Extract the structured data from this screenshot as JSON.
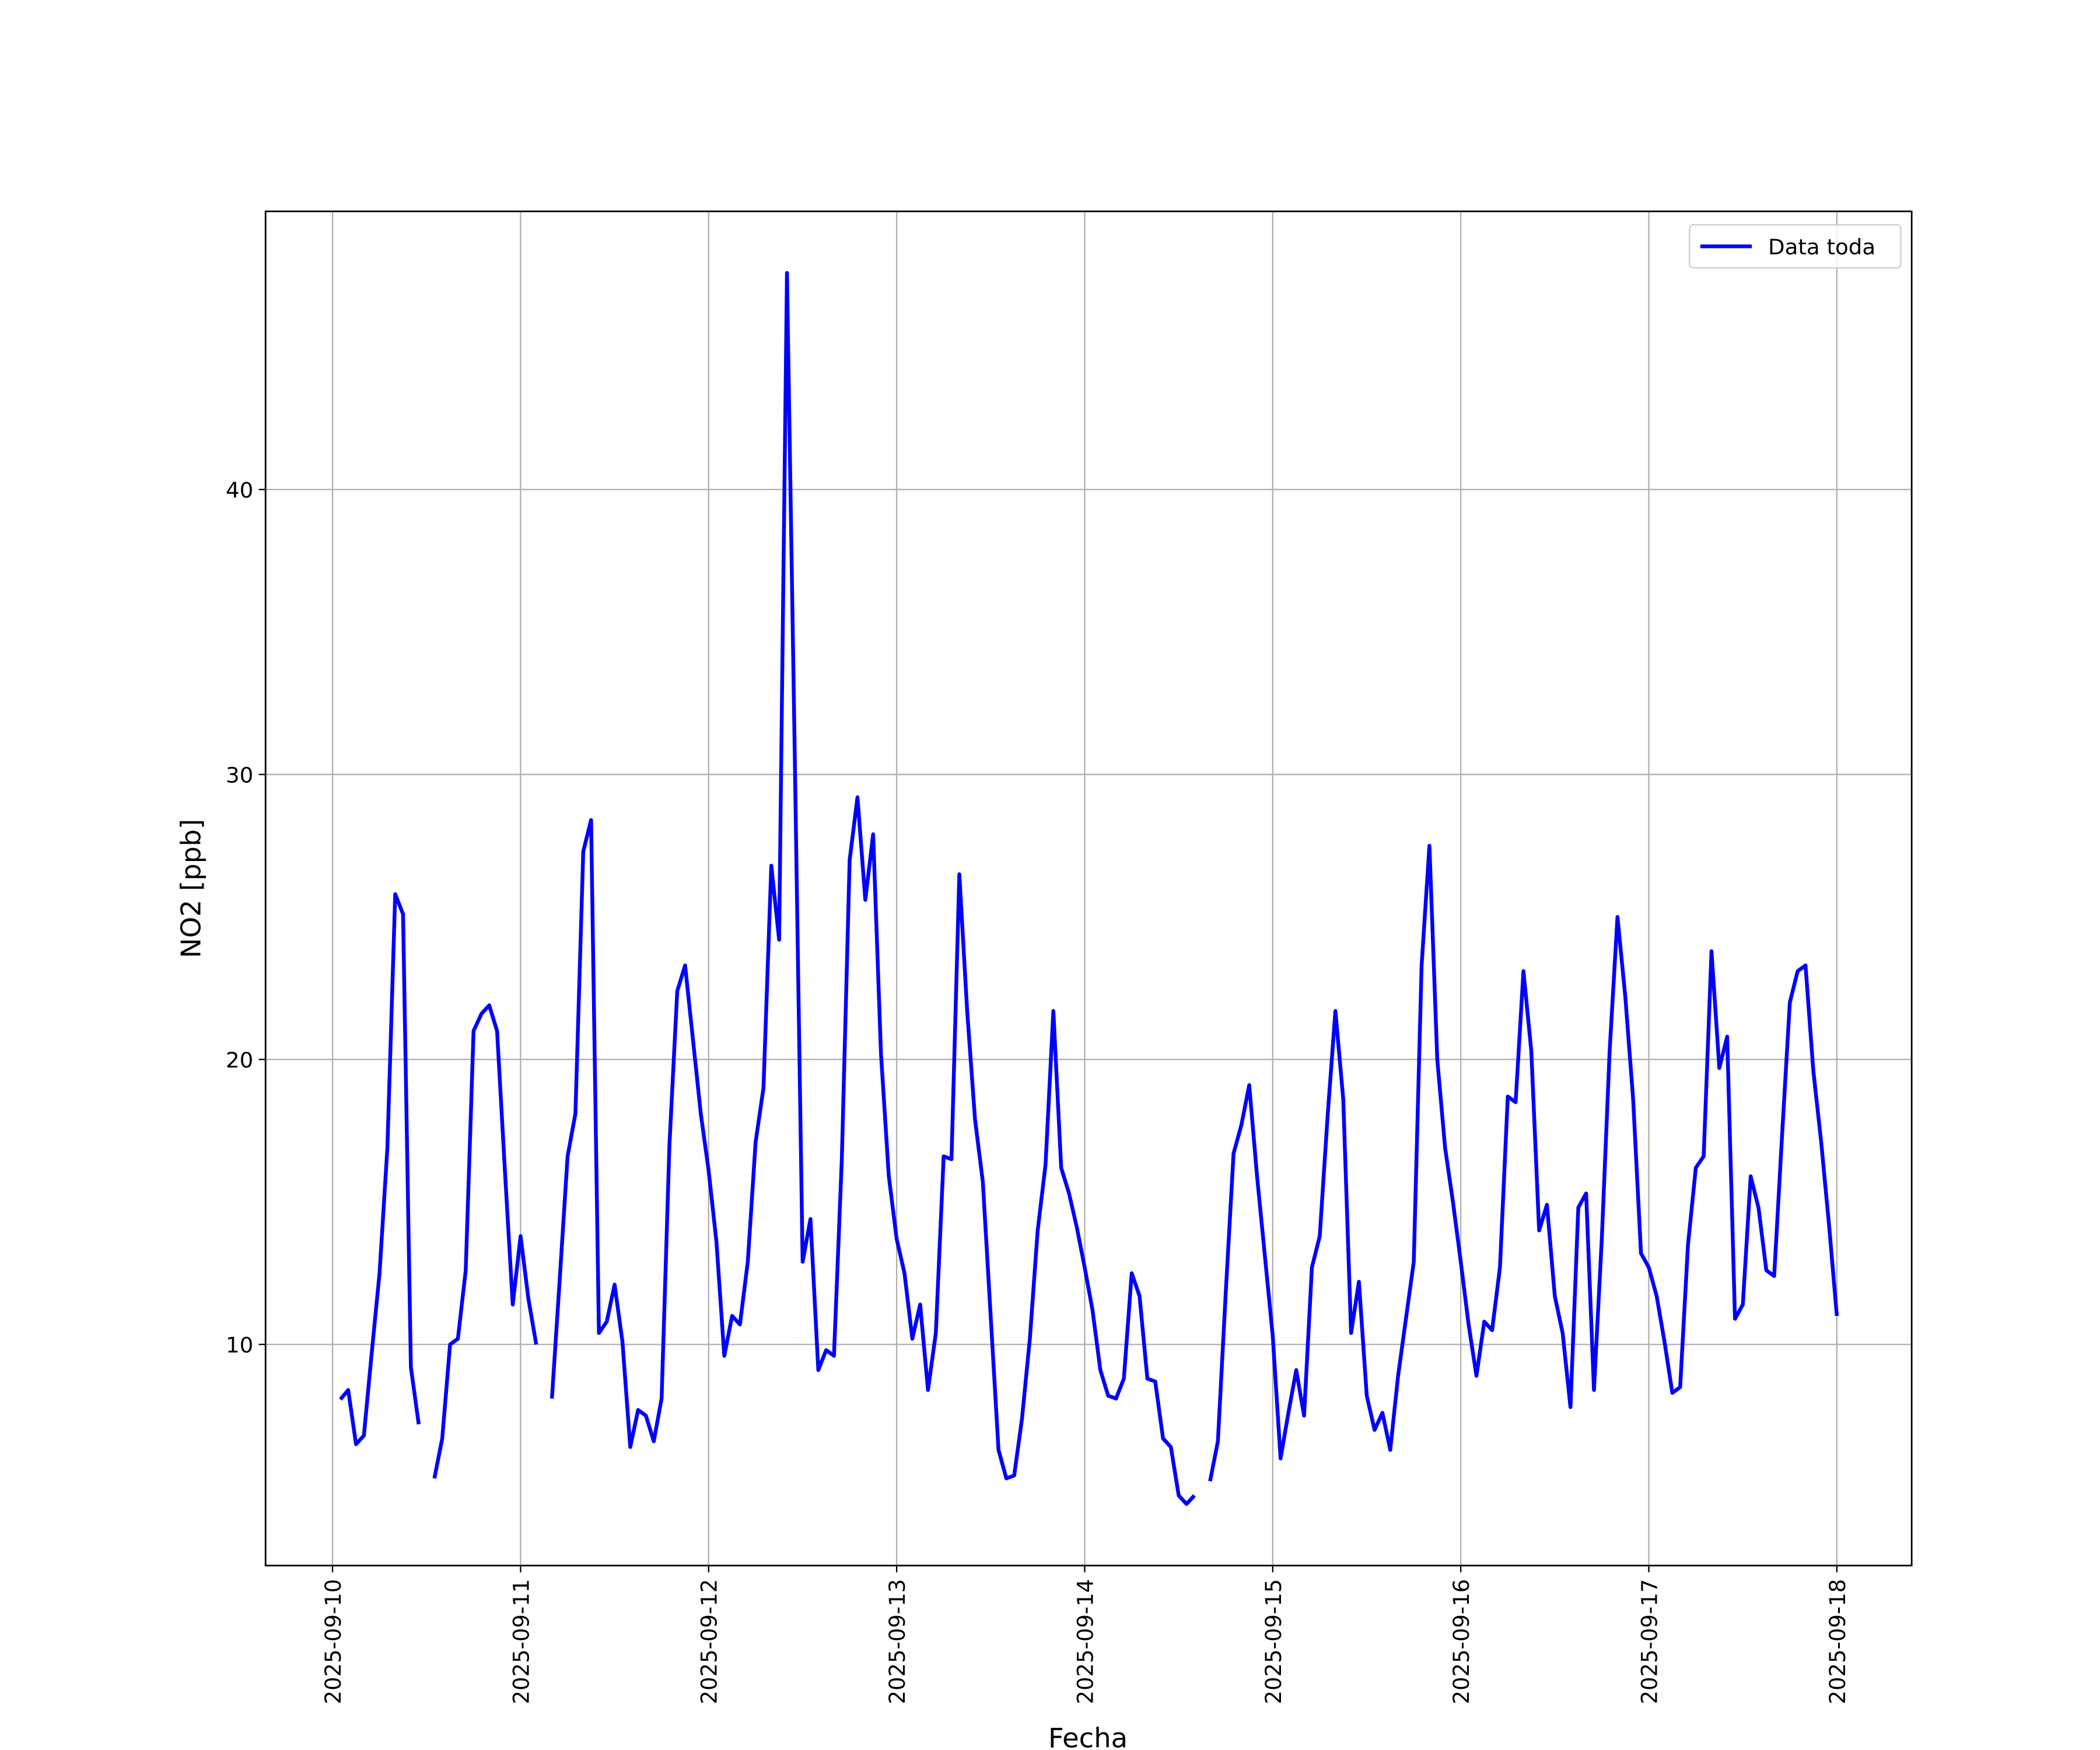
{
  "chart_data": {
    "type": "line",
    "xlabel": "Fecha",
    "ylabel": "NO2 [ppb]",
    "x": [
      "2025-09-10T01:00",
      "2025-09-10T02:00",
      "2025-09-10T03:00",
      "2025-09-10T04:00",
      "2025-09-10T05:00",
      "2025-09-10T06:00",
      "2025-09-10T07:00",
      "2025-09-10T08:00",
      "2025-09-10T09:00",
      "2025-09-10T10:00",
      "2025-09-10T11:00",
      "2025-09-10T12:00",
      "2025-09-10T13:00",
      "2025-09-10T14:00",
      "2025-09-10T15:00",
      "2025-09-10T16:00",
      "2025-09-10T17:00",
      "2025-09-10T18:00",
      "2025-09-10T19:00",
      "2025-09-10T20:00",
      "2025-09-10T21:00",
      "2025-09-10T22:00",
      "2025-09-10T23:00",
      "2025-09-11T00:00",
      "2025-09-11T01:00",
      "2025-09-11T02:00",
      "2025-09-11T03:00",
      "2025-09-11T04:00",
      "2025-09-11T05:00",
      "2025-09-11T06:00",
      "2025-09-11T07:00",
      "2025-09-11T08:00",
      "2025-09-11T09:00",
      "2025-09-11T10:00",
      "2025-09-11T11:00",
      "2025-09-11T12:00",
      "2025-09-11T13:00",
      "2025-09-11T14:00",
      "2025-09-11T15:00",
      "2025-09-11T16:00",
      "2025-09-11T17:00",
      "2025-09-11T18:00",
      "2025-09-11T19:00",
      "2025-09-11T20:00",
      "2025-09-11T21:00",
      "2025-09-11T22:00",
      "2025-09-11T23:00",
      "2025-09-12T00:00",
      "2025-09-12T01:00",
      "2025-09-12T02:00",
      "2025-09-12T03:00",
      "2025-09-12T04:00",
      "2025-09-12T05:00",
      "2025-09-12T06:00",
      "2025-09-12T07:00",
      "2025-09-12T08:00",
      "2025-09-12T09:00",
      "2025-09-12T10:00",
      "2025-09-12T11:00",
      "2025-09-12T12:00",
      "2025-09-12T13:00",
      "2025-09-12T14:00",
      "2025-09-12T15:00",
      "2025-09-12T16:00",
      "2025-09-12T17:00",
      "2025-09-12T18:00",
      "2025-09-12T19:00",
      "2025-09-12T20:00",
      "2025-09-12T21:00",
      "2025-09-12T22:00",
      "2025-09-12T23:00",
      "2025-09-13T00:00",
      "2025-09-13T01:00",
      "2025-09-13T02:00",
      "2025-09-13T03:00",
      "2025-09-13T04:00",
      "2025-09-13T05:00",
      "2025-09-13T06:00",
      "2025-09-13T07:00",
      "2025-09-13T08:00",
      "2025-09-13T09:00",
      "2025-09-13T10:00",
      "2025-09-13T11:00",
      "2025-09-13T12:00",
      "2025-09-13T13:00",
      "2025-09-13T14:00",
      "2025-09-13T15:00",
      "2025-09-13T16:00",
      "2025-09-13T17:00",
      "2025-09-13T18:00",
      "2025-09-13T19:00",
      "2025-09-13T20:00",
      "2025-09-13T21:00",
      "2025-09-13T22:00",
      "2025-09-13T23:00",
      "2025-09-14T00:00",
      "2025-09-14T01:00",
      "2025-09-14T02:00",
      "2025-09-14T03:00",
      "2025-09-14T04:00",
      "2025-09-14T05:00",
      "2025-09-14T06:00",
      "2025-09-14T07:00",
      "2025-09-14T08:00",
      "2025-09-14T09:00",
      "2025-09-14T10:00",
      "2025-09-14T11:00",
      "2025-09-14T12:00",
      "2025-09-14T13:00",
      "2025-09-14T14:00",
      "2025-09-14T15:00",
      "2025-09-14T16:00",
      "2025-09-14T17:00",
      "2025-09-14T18:00",
      "2025-09-14T19:00",
      "2025-09-14T20:00",
      "2025-09-14T21:00",
      "2025-09-14T22:00",
      "2025-09-14T23:00",
      "2025-09-15T00:00",
      "2025-09-15T01:00",
      "2025-09-15T02:00",
      "2025-09-15T03:00",
      "2025-09-15T04:00",
      "2025-09-15T05:00",
      "2025-09-15T06:00",
      "2025-09-15T07:00",
      "2025-09-15T08:00",
      "2025-09-15T09:00",
      "2025-09-15T10:00",
      "2025-09-15T11:00",
      "2025-09-15T12:00",
      "2025-09-15T13:00",
      "2025-09-15T14:00",
      "2025-09-15T15:00",
      "2025-09-15T16:00",
      "2025-09-15T17:00",
      "2025-09-15T18:00",
      "2025-09-15T19:00",
      "2025-09-15T20:00",
      "2025-09-15T21:00",
      "2025-09-15T22:00",
      "2025-09-15T23:00",
      "2025-09-16T00:00",
      "2025-09-16T01:00",
      "2025-09-16T02:00",
      "2025-09-16T03:00",
      "2025-09-16T04:00",
      "2025-09-16T05:00",
      "2025-09-16T06:00",
      "2025-09-16T07:00",
      "2025-09-16T08:00",
      "2025-09-16T09:00",
      "2025-09-16T10:00",
      "2025-09-16T11:00",
      "2025-09-16T12:00",
      "2025-09-16T13:00",
      "2025-09-16T14:00",
      "2025-09-16T15:00",
      "2025-09-16T16:00",
      "2025-09-16T17:00",
      "2025-09-16T18:00",
      "2025-09-16T19:00",
      "2025-09-16T20:00",
      "2025-09-16T21:00",
      "2025-09-16T22:00",
      "2025-09-16T23:00",
      "2025-09-17T00:00",
      "2025-09-17T01:00",
      "2025-09-17T02:00",
      "2025-09-17T03:00",
      "2025-09-17T04:00",
      "2025-09-17T05:00",
      "2025-09-17T06:00",
      "2025-09-17T07:00",
      "2025-09-17T08:00",
      "2025-09-17T09:00",
      "2025-09-17T10:00",
      "2025-09-17T11:00",
      "2025-09-17T12:00",
      "2025-09-17T13:00",
      "2025-09-17T14:00",
      "2025-09-17T15:00",
      "2025-09-17T16:00",
      "2025-09-17T17:00",
      "2025-09-17T18:00",
      "2025-09-17T19:00",
      "2025-09-17T20:00",
      "2025-09-17T21:00",
      "2025-09-17T22:00",
      "2025-09-17T23:00",
      "2025-09-18T00:00"
    ],
    "series": [
      {
        "name": "Data toda",
        "color": "#0000ff",
        "values": [
          8.07,
          8.4,
          6.5,
          6.8,
          9.7,
          12.5,
          16.9,
          25.8,
          25.1,
          9.2,
          7.2,
          null,
          5.3,
          6.7,
          10.0,
          10.2,
          12.6,
          21.0,
          21.6,
          21.9,
          21.0,
          16.1,
          11.4,
          13.8,
          11.6,
          10.0,
          null,
          8.1,
          12.3,
          16.6,
          18.1,
          27.3,
          28.4,
          10.4,
          10.8,
          12.1,
          10.1,
          6.4,
          7.7,
          7.5,
          6.6,
          8.1,
          17.0,
          22.4,
          23.3,
          20.7,
          18.1,
          16.1,
          13.6,
          9.6,
          11.0,
          10.7,
          12.9,
          17.1,
          19.0,
          26.8,
          24.2,
          47.6,
          30.6,
          12.9,
          14.4,
          9.1,
          9.8,
          9.6,
          16.5,
          27.0,
          29.2,
          25.6,
          27.9,
          20.2,
          15.9,
          13.7,
          12.5,
          10.2,
          11.4,
          8.4,
          10.4,
          16.6,
          16.5,
          26.5,
          21.7,
          17.9,
          15.7,
          11.0,
          6.3,
          5.3,
          5.4,
          7.4,
          10.2,
          14.0,
          16.3,
          21.7,
          16.2,
          15.3,
          14.1,
          12.7,
          11.2,
          9.1,
          8.2,
          8.1,
          8.8,
          12.5,
          11.7,
          8.8,
          8.7,
          6.7,
          6.4,
          4.7,
          4.4,
          4.7,
          null,
          5.2,
          6.6,
          11.8,
          16.7,
          17.7,
          19.1,
          15.9,
          13.1,
          10.3,
          6.0,
          7.6,
          9.1,
          7.5,
          12.7,
          13.8,
          18.0,
          21.7,
          18.6,
          10.4,
          12.2,
          8.2,
          7.0,
          7.6,
          6.3,
          8.9,
          10.9,
          12.9,
          23.3,
          27.5,
          20.0,
          16.9,
          15.0,
          12.9,
          10.7,
          8.9,
          10.8,
          10.5,
          12.7,
          18.7,
          18.5,
          23.1,
          20.3,
          14.0,
          14.9,
          11.7,
          10.4,
          7.8,
          14.8,
          15.3,
          8.4,
          13.7,
          20.3,
          25.0,
          22.2,
          18.6,
          13.2,
          12.7,
          11.7,
          10.1,
          8.3,
          8.5,
          13.5,
          16.2,
          16.6,
          23.8,
          19.7,
          20.8,
          10.9,
          11.4,
          15.9,
          14.8,
          12.6,
          12.4,
          17.3,
          22.0,
          23.1,
          23.3,
          19.6,
          17.1,
          14.2,
          11.0
        ]
      }
    ],
    "xlim": [
      "2025-09-09T15:27",
      "2025-09-18T09:33"
    ],
    "xticks": [
      "2025-09-10",
      "2025-09-11",
      "2025-09-12",
      "2025-09-13",
      "2025-09-14",
      "2025-09-15",
      "2025-09-16",
      "2025-09-17",
      "2025-09-18"
    ],
    "ylim": [
      2.24,
      49.76
    ],
    "yticks": [
      10,
      20,
      30,
      40
    ],
    "grid": true,
    "legend": "upper right"
  }
}
